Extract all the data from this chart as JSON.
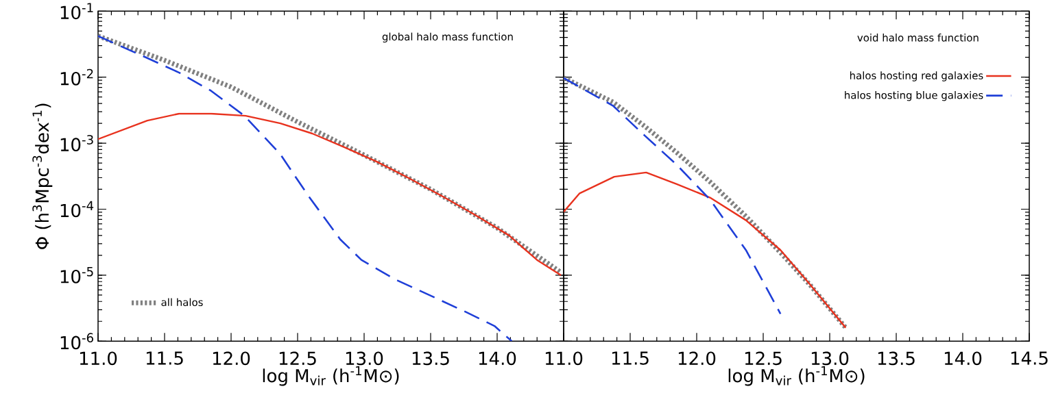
{
  "chart_data": [
    {
      "type": "line",
      "title": "global halo mass function",
      "xlabel": "log M$_{vir}$ (h$^{-1}$M⊙)",
      "ylabel": "Φ (h$^{3}$Mpc$^{-3}$dex$^{-1}$)",
      "xlim": [
        11.0,
        14.5
      ],
      "ylim": [
        1e-06,
        0.1
      ],
      "log": "y",
      "marker": "none",
      "legend": "bottom left",
      "xticks": [
        {
          "value": 11.0,
          "label": "11.0"
        },
        {
          "value": 11.5,
          "label": "11.5"
        },
        {
          "value": 12.0,
          "label": "12.0"
        },
        {
          "value": 12.5,
          "label": "12.5"
        },
        {
          "value": 13.0,
          "label": "13.0"
        },
        {
          "value": 13.5,
          "label": "13.5"
        },
        {
          "value": 14.0,
          "label": "14.0"
        },
        {
          "value": 14.5,
          "label": null
        }
      ],
      "yticks": [
        {
          "value": 1e-06,
          "label": "10$^{-6}$"
        },
        {
          "value": 1e-05,
          "label": "10$^{-5}$"
        },
        {
          "value": 0.0001,
          "label": "10$^{-4}$"
        },
        {
          "value": 0.001,
          "label": "10$^{-3}$"
        },
        {
          "value": 0.01,
          "label": "10$^{-2}$"
        },
        {
          "value": 0.1,
          "label": "10$^{-1}$"
        }
      ],
      "series": [
        {
          "name": "all halos",
          "color": "#808080",
          "line_style": "dotted",
          "x": [
            11.0,
            11.5,
            12.0,
            12.5,
            13.0,
            13.5,
            14.0,
            14.48
          ],
          "values": [
            0.042,
            0.018,
            0.0071,
            0.0021,
            0.00066,
            0.0002,
            5.2e-05,
            1.1e-05
          ]
        },
        {
          "color": "#e8321e",
          "line_style": "solid",
          "x": [
            11.0,
            11.37,
            11.61,
            11.85,
            12.11,
            12.37,
            12.61,
            12.85,
            13.09,
            13.33,
            13.58,
            13.82,
            14.09,
            14.3,
            14.48
          ],
          "values": [
            0.00115,
            0.0022,
            0.0028,
            0.0028,
            0.0026,
            0.002,
            0.0014,
            0.00087,
            0.00053,
            0.0003,
            0.00016,
            8.5e-05,
            4e-05,
            1.7e-05,
            1e-05
          ]
        },
        {
          "color": "#1f3fd8",
          "line_style": "dashed",
          "x": [
            11.0,
            11.37,
            11.61,
            11.85,
            12.1,
            12.37,
            12.58,
            12.82,
            12.98,
            13.23,
            13.49,
            13.76,
            13.98,
            14.11
          ],
          "values": [
            0.042,
            0.0195,
            0.0117,
            0.0062,
            0.0026,
            0.00068,
            0.00016,
            3.5e-05,
            1.7e-05,
            8.7e-06,
            5e-06,
            2.8e-06,
            1.7e-06,
            1e-06
          ]
        }
      ]
    },
    {
      "type": "line",
      "title": "void halo mass function",
      "xlabel": "log M$_{vir}$ (h$^{-1}$M⊙)",
      "xlim": [
        11.0,
        14.5
      ],
      "ylim": [
        1e-06,
        0.1
      ],
      "log": "y",
      "marker": "none",
      "legend": "top right",
      "tick_labels": "x",
      "xticks": [
        {
          "value": 11.0,
          "label": "11.0"
        },
        {
          "value": 11.5,
          "label": "11.5"
        },
        {
          "value": 12.0,
          "label": "12.0"
        },
        {
          "value": 12.5,
          "label": "12.5"
        },
        {
          "value": 13.0,
          "label": "13.0"
        },
        {
          "value": 13.5,
          "label": "13.5"
        },
        {
          "value": 14.0,
          "label": "14.0"
        },
        {
          "value": 14.5,
          "label": "14.5"
        }
      ],
      "yticks": [
        {
          "value": 1e-06,
          "label": null
        },
        {
          "value": 1e-05,
          "label": null
        },
        {
          "value": 0.0001,
          "label": null
        },
        {
          "value": 0.001,
          "label": null
        },
        {
          "value": 0.01,
          "label": null
        },
        {
          "value": 0.1,
          "label": null
        }
      ],
      "series": [
        {
          "color": "#808080",
          "line_style": "dotted",
          "x": [
            11.0,
            11.37,
            11.61,
            11.85,
            12.1,
            12.37,
            12.63,
            12.85,
            13.12
          ],
          "values": [
            0.0098,
            0.0042,
            0.0018,
            0.00072,
            0.00026,
            7.8e-05,
            2.2e-05,
            7.2e-06,
            1.6e-06
          ]
        },
        {
          "name": "halos hosting red galaxies",
          "color": "#e8321e",
          "line_style": "solid",
          "x": [
            11.0,
            11.12,
            11.38,
            11.62,
            11.85,
            12.1,
            12.37,
            12.63,
            12.85,
            13.12
          ],
          "values": [
            9.1e-05,
            0.000174,
            0.00031,
            0.00036,
            0.00024,
            0.00015,
            6.8e-05,
            2.4e-05,
            7.3e-06,
            1.6e-06
          ]
        },
        {
          "name": "halos hosting blue galaxies",
          "color": "#1f3fd8",
          "line_style": "dashed",
          "x": [
            11.0,
            11.37,
            11.61,
            11.85,
            12.1,
            12.37,
            12.63
          ],
          "values": [
            0.0097,
            0.0037,
            0.0013,
            0.00047,
            0.00014,
            2.4e-05,
            2.6e-06
          ]
        }
      ]
    }
  ]
}
